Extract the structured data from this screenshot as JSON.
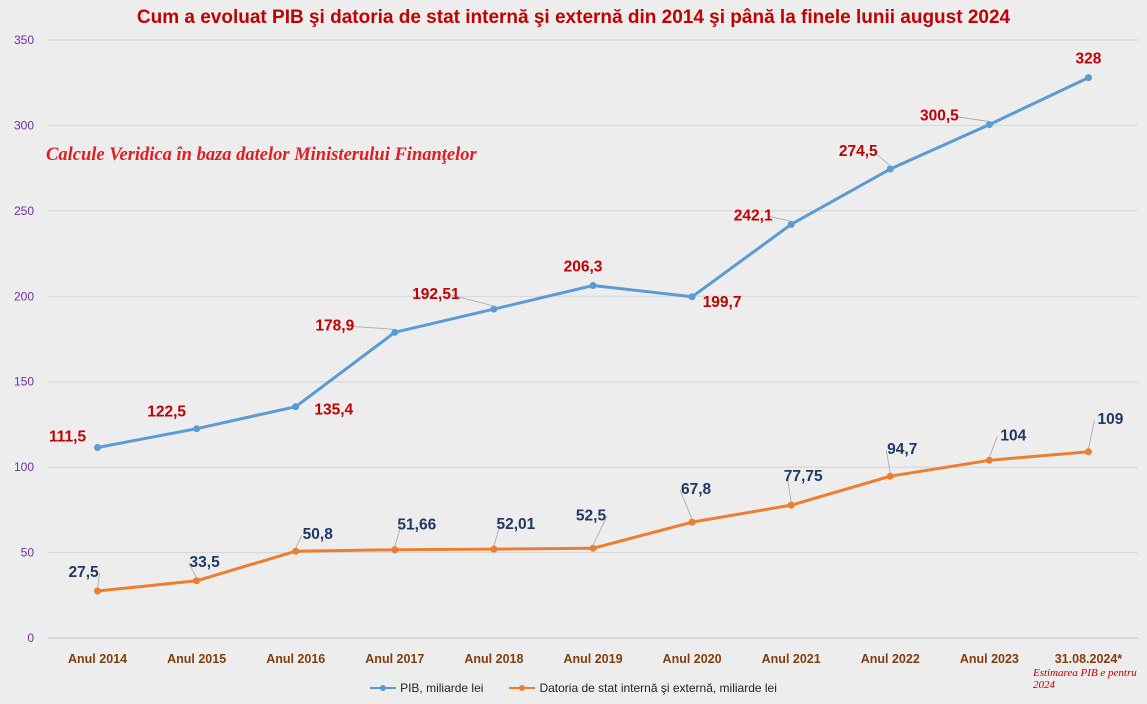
{
  "chart_data": {
    "type": "line",
    "title": "Cum a evoluat PIB şi datoria de stat internă şi externă din 2014 şi până la finele lunii august 2024",
    "subtitle": "Calcule Veridica în baza datelor Ministerului Finanţelor",
    "footnote": "Estimarea PIB e pentru 2024",
    "categories": [
      "Anul 2014",
      "Anul 2015",
      "Anul 2016",
      "Anul 2017",
      "Anul 2018",
      "Anul 2019",
      "Anul 2020",
      "Anul 2021",
      "Anul 2022",
      "Anul 2023",
      "31.08.2024*"
    ],
    "ylim": [
      0,
      350
    ],
    "yticks": [
      0,
      50,
      100,
      150,
      200,
      250,
      300,
      350
    ],
    "grid": true,
    "legend_position": "bottom",
    "series": [
      {
        "name": "PIB, miliarde lei",
        "color": "#5b9bd5",
        "label_color": "#c00000",
        "values": [
          111.5,
          122.5,
          135.4,
          178.9,
          192.51,
          206.3,
          199.7,
          242.1,
          274.5,
          300.5,
          328
        ],
        "labels": [
          "111,5",
          "122,5",
          "135,4",
          "178,9",
          "192,51",
          "206,3",
          "199,7",
          "242,1",
          "274,5",
          "300,5",
          "328"
        ]
      },
      {
        "name": "Datoria de stat internă şi externă, miliarde lei",
        "color": "#ed7d31",
        "label_color": "#1f3864",
        "values": [
          27.5,
          33.5,
          50.8,
          51.66,
          52.01,
          52.5,
          67.8,
          77.75,
          94.7,
          104,
          109
        ],
        "labels": [
          "27,5",
          "33,5",
          "50,8",
          "51,66",
          "52,01",
          "52,5",
          "67,8",
          "77,75",
          "94,7",
          "104",
          "109"
        ]
      }
    ]
  }
}
